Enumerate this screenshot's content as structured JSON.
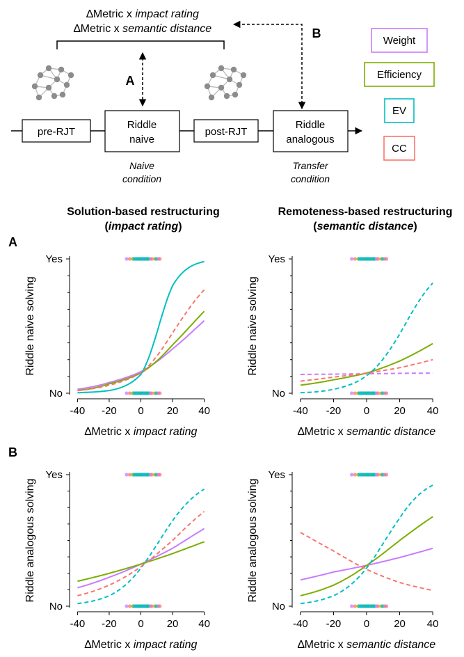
{
  "diagram": {
    "metric_lines": [
      {
        "prefix": "∆Metric x ",
        "emph": "impact rating"
      },
      {
        "prefix": "∆Metric x ",
        "emph": "semantic distance"
      }
    ],
    "label_a": "A",
    "label_b": "B",
    "boxes": [
      {
        "id": "pre",
        "lines": [
          "pre-RJT"
        ]
      },
      {
        "id": "naive",
        "lines": [
          "Riddle",
          "naive"
        ]
      },
      {
        "id": "post",
        "lines": [
          "post-RJT"
        ]
      },
      {
        "id": "analogous",
        "lines": [
          "Riddle",
          "analogous"
        ]
      }
    ],
    "naive_caption": [
      "Naive",
      "condition"
    ],
    "transfer_caption": [
      "Transfer",
      "condition"
    ],
    "legend": [
      {
        "label": "Weight",
        "color": "#c77cff"
      },
      {
        "label": "Efficiency",
        "color": "#7cae00"
      },
      {
        "label": "EV",
        "color": "#00bfc4"
      },
      {
        "label": "CC",
        "color": "#f8766d"
      }
    ]
  },
  "column_headers": [
    {
      "line1": "Solution-based restructuring",
      "line2_open": "(",
      "line2_emph": "impact rating",
      "line2_close": ")"
    },
    {
      "line1": "Remoteness-based restructuring",
      "line2_open": "(",
      "line2_emph": "semantic distance",
      "line2_close": ")"
    }
  ],
  "row_labels": [
    "A",
    "B"
  ],
  "colors": {
    "Weight": "#c77cff",
    "Efficiency": "#7cae00",
    "EV": "#00bfc4",
    "CC": "#f8766d"
  },
  "chart_data": [
    {
      "type": "line",
      "row": "A",
      "col": 1,
      "ylabel": "Riddle naive solving",
      "xlabel_prefix": "∆Metric x ",
      "xlabel_emph": "impact rating",
      "xlim": [
        -45,
        45
      ],
      "ylim": [
        0,
        1
      ],
      "xticks": [
        -40,
        -20,
        0,
        20,
        40
      ],
      "yticks": [
        {
          "value": 0,
          "label": "No"
        },
        {
          "value": 1,
          "label": "Yes"
        }
      ],
      "x": [
        -40,
        -20,
        0,
        20,
        40
      ],
      "series": [
        {
          "name": "Weight",
          "dashed": false,
          "values": [
            0.03,
            0.08,
            0.16,
            0.33,
            0.54
          ]
        },
        {
          "name": "Efficiency",
          "dashed": false,
          "values": [
            0.02,
            0.07,
            0.15,
            0.36,
            0.61
          ]
        },
        {
          "name": "EV",
          "dashed": false,
          "values": [
            0.0,
            0.02,
            0.14,
            0.8,
            0.98
          ]
        },
        {
          "name": "CC",
          "dashed": true,
          "values": [
            0.02,
            0.06,
            0.15,
            0.45,
            0.77
          ]
        }
      ]
    },
    {
      "type": "line",
      "row": "A",
      "col": 2,
      "ylabel": "Riddle naive solving",
      "xlabel_prefix": "∆Metric x ",
      "xlabel_emph": "semantic distance",
      "xlim": [
        -45,
        45
      ],
      "ylim": [
        0,
        1
      ],
      "xticks": [
        -40,
        -20,
        0,
        20,
        40
      ],
      "yticks": [
        {
          "value": 0,
          "label": "No"
        },
        {
          "value": 1,
          "label": "Yes"
        }
      ],
      "x": [
        -40,
        -20,
        0,
        20,
        40
      ],
      "series": [
        {
          "name": "Weight",
          "dashed": true,
          "values": [
            0.14,
            0.142,
            0.145,
            0.148,
            0.15
          ]
        },
        {
          "name": "Efficiency",
          "dashed": false,
          "values": [
            0.06,
            0.1,
            0.15,
            0.24,
            0.37
          ]
        },
        {
          "name": "EV",
          "dashed": true,
          "values": [
            0.0,
            0.03,
            0.13,
            0.44,
            0.82
          ]
        },
        {
          "name": "CC",
          "dashed": true,
          "values": [
            0.09,
            0.12,
            0.15,
            0.19,
            0.25
          ]
        }
      ]
    },
    {
      "type": "line",
      "row": "B",
      "col": 1,
      "ylabel": "Riddle analogous solving",
      "xlabel_prefix": "∆Metric x ",
      "xlabel_emph": "impact rating",
      "xlim": [
        -45,
        45
      ],
      "ylim": [
        0,
        1
      ],
      "xticks": [
        -40,
        -20,
        0,
        20,
        40
      ],
      "yticks": [
        {
          "value": 0,
          "label": "No"
        },
        {
          "value": 1,
          "label": "Yes"
        }
      ],
      "x": [
        -40,
        -20,
        0,
        20,
        40
      ],
      "series": [
        {
          "name": "Weight",
          "dashed": false,
          "values": [
            0.14,
            0.22,
            0.32,
            0.44,
            0.59
          ]
        },
        {
          "name": "Efficiency",
          "dashed": false,
          "values": [
            0.19,
            0.25,
            0.32,
            0.4,
            0.49
          ]
        },
        {
          "name": "EV",
          "dashed": true,
          "values": [
            0.02,
            0.08,
            0.29,
            0.65,
            0.89
          ]
        },
        {
          "name": "CC",
          "dashed": true,
          "values": [
            0.08,
            0.16,
            0.3,
            0.5,
            0.72
          ]
        }
      ]
    },
    {
      "type": "line",
      "row": "B",
      "col": 2,
      "ylabel": "Riddle analogous solving",
      "xlabel_prefix": "∆Metric x ",
      "xlabel_emph": "semantic distance",
      "xlim": [
        -45,
        45
      ],
      "ylim": [
        0,
        1
      ],
      "xticks": [
        -40,
        -20,
        0,
        20,
        40
      ],
      "yticks": [
        {
          "value": 0,
          "label": "No"
        },
        {
          "value": 1,
          "label": "Yes"
        }
      ],
      "x": [
        -40,
        -20,
        0,
        20,
        40
      ],
      "series": [
        {
          "name": "Weight",
          "dashed": false,
          "values": [
            0.2,
            0.26,
            0.31,
            0.37,
            0.44
          ]
        },
        {
          "name": "Efficiency",
          "dashed": false,
          "values": [
            0.08,
            0.16,
            0.31,
            0.5,
            0.68
          ]
        },
        {
          "name": "EV",
          "dashed": true,
          "values": [
            0.02,
            0.08,
            0.29,
            0.67,
            0.92
          ]
        },
        {
          "name": "CC",
          "dashed": true,
          "values": [
            0.56,
            0.42,
            0.28,
            0.18,
            0.12
          ]
        }
      ]
    }
  ]
}
